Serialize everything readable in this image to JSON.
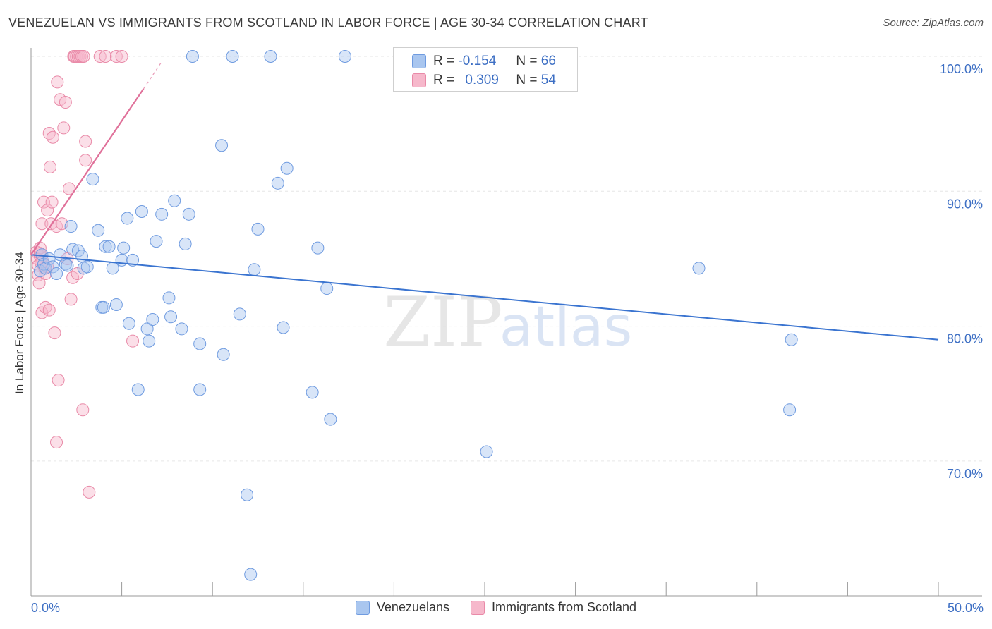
{
  "title": "VENEZUELAN VS IMMIGRANTS FROM SCOTLAND IN LABOR FORCE | AGE 30-34 CORRELATION CHART",
  "source": "Source: ZipAtlas.com",
  "watermark": {
    "zip": "ZIP",
    "atlas": "atlas"
  },
  "legend": {
    "r_label": "R =",
    "n_label": "N =",
    "rows": [
      {
        "r": "-0.154",
        "n": "66"
      },
      {
        "r": "0.309",
        "n": "54"
      }
    ]
  },
  "colors": {
    "blue_fill": "#a9c6ef",
    "blue_stroke": "#6f9be0",
    "blue_line": "#3a74d0",
    "pink_fill": "#f6b8cb",
    "pink_stroke": "#e98aa8",
    "pink_line": "#e0719a",
    "axis_text": "#3d6fc4",
    "grid": "#e6e6e6"
  },
  "chart_data": {
    "type": "scatter",
    "title": "VENEZUELAN VS IMMIGRANTS FROM SCOTLAND IN LABOR FORCE | AGE 30-34 CORRELATION CHART",
    "xlabel": "",
    "ylabel": "In Labor Force | Age 30-34",
    "xlim": [
      0,
      50
    ],
    "ylim": [
      61,
      101
    ],
    "x_tick_labels": {
      "left": "0.0%",
      "right": "50.0%"
    },
    "y_ticks": [
      {
        "value": 100,
        "label": "100.0%"
      },
      {
        "value": 90,
        "label": "90.0%"
      },
      {
        "value": 80,
        "label": "80.0%"
      },
      {
        "value": 70,
        "label": "70.0%"
      }
    ],
    "series": [
      {
        "name": "Venezuelans",
        "r": -0.154,
        "n": 66,
        "trend": {
          "x0": 0.0,
          "y0": 85.3,
          "x1": 50.0,
          "y1": 79.0
        },
        "points": [
          [
            0.5,
            84.1
          ],
          [
            0.6,
            85.3
          ],
          [
            0.7,
            84.6
          ],
          [
            0.8,
            84.3
          ],
          [
            1.0,
            85.0
          ],
          [
            1.2,
            84.4
          ],
          [
            1.4,
            83.9
          ],
          [
            1.6,
            85.3
          ],
          [
            1.9,
            84.6
          ],
          [
            2.0,
            84.5
          ],
          [
            2.2,
            87.4
          ],
          [
            2.3,
            85.7
          ],
          [
            2.6,
            85.6
          ],
          [
            2.8,
            85.2
          ],
          [
            2.9,
            84.3
          ],
          [
            3.1,
            84.4
          ],
          [
            3.4,
            90.9
          ],
          [
            3.7,
            87.1
          ],
          [
            3.9,
            81.4
          ],
          [
            4.1,
            85.9
          ],
          [
            4.3,
            85.9
          ],
          [
            4.5,
            84.3
          ],
          [
            4.7,
            81.6
          ],
          [
            5.0,
            84.9
          ],
          [
            5.1,
            85.8
          ],
          [
            5.3,
            88.0
          ],
          [
            5.4,
            80.2
          ],
          [
            5.6,
            84.9
          ],
          [
            5.9,
            75.3
          ],
          [
            6.1,
            88.5
          ],
          [
            6.4,
            79.8
          ],
          [
            6.5,
            78.9
          ],
          [
            6.7,
            80.5
          ],
          [
            6.9,
            86.3
          ],
          [
            7.2,
            88.3
          ],
          [
            7.6,
            82.1
          ],
          [
            7.7,
            80.7
          ],
          [
            7.9,
            89.3
          ],
          [
            8.3,
            79.8
          ],
          [
            8.5,
            86.1
          ],
          [
            8.7,
            88.3
          ],
          [
            8.9,
            100.0
          ],
          [
            9.3,
            78.7
          ],
          [
            9.3,
            75.3
          ],
          [
            10.5,
            93.4
          ],
          [
            10.6,
            77.9
          ],
          [
            11.1,
            100.0
          ],
          [
            11.5,
            80.9
          ],
          [
            11.9,
            67.5
          ],
          [
            12.1,
            61.6
          ],
          [
            12.3,
            84.2
          ],
          [
            12.5,
            87.2
          ],
          [
            13.2,
            100.0
          ],
          [
            13.6,
            90.6
          ],
          [
            13.9,
            79.9
          ],
          [
            14.1,
            91.7
          ],
          [
            15.5,
            75.1
          ],
          [
            15.8,
            85.8
          ],
          [
            16.3,
            82.8
          ],
          [
            16.5,
            73.1
          ],
          [
            17.3,
            100.0
          ],
          [
            25.1,
            70.7
          ],
          [
            36.8,
            84.3
          ],
          [
            41.8,
            73.8
          ],
          [
            41.9,
            79.0
          ],
          [
            4.0,
            81.4
          ]
        ]
      },
      {
        "name": "Immigrants from Scotland",
        "r": 0.309,
        "n": 54,
        "trend": {
          "x0": 0.0,
          "y0": 85.3,
          "x1": 6.2,
          "y1": 97.6,
          "dash_to_x": 7.2,
          "dash_to_y": 99.6
        },
        "points": [
          [
            0.3,
            85.5
          ],
          [
            0.35,
            85.0
          ],
          [
            0.4,
            84.5
          ],
          [
            0.4,
            83.8
          ],
          [
            0.45,
            83.2
          ],
          [
            0.5,
            85.2
          ],
          [
            0.5,
            85.8
          ],
          [
            0.55,
            84.7
          ],
          [
            0.6,
            87.6
          ],
          [
            0.6,
            81.0
          ],
          [
            0.7,
            89.2
          ],
          [
            0.75,
            84.3
          ],
          [
            0.8,
            83.9
          ],
          [
            0.8,
            81.4
          ],
          [
            0.9,
            84.4
          ],
          [
            0.9,
            88.6
          ],
          [
            1.0,
            94.3
          ],
          [
            1.0,
            81.2
          ],
          [
            1.05,
            91.8
          ],
          [
            1.1,
            87.6
          ],
          [
            1.15,
            89.2
          ],
          [
            1.2,
            94.0
          ],
          [
            1.3,
            79.5
          ],
          [
            1.4,
            87.4
          ],
          [
            1.45,
            98.1
          ],
          [
            1.5,
            76.0
          ],
          [
            1.6,
            96.8
          ],
          [
            1.7,
            87.6
          ],
          [
            1.8,
            94.7
          ],
          [
            1.9,
            96.6
          ],
          [
            2.0,
            85.0
          ],
          [
            2.1,
            90.2
          ],
          [
            2.2,
            82.0
          ],
          [
            2.3,
            83.6
          ],
          [
            2.35,
            100.0
          ],
          [
            2.4,
            100.0
          ],
          [
            2.5,
            100.0
          ],
          [
            2.55,
            83.9
          ],
          [
            2.6,
            100.0
          ],
          [
            2.7,
            100.0
          ],
          [
            2.8,
            100.0
          ],
          [
            2.9,
            100.0
          ],
          [
            3.0,
            93.7
          ],
          [
            2.85,
            73.8
          ],
          [
            3.0,
            92.3
          ],
          [
            3.2,
            67.7
          ],
          [
            3.8,
            100.0
          ],
          [
            4.1,
            100.0
          ],
          [
            4.7,
            100.0
          ],
          [
            5.0,
            100.0
          ],
          [
            1.4,
            71.4
          ],
          [
            5.6,
            78.9
          ],
          [
            0.5,
            85.4
          ],
          [
            0.65,
            84.8
          ]
        ]
      }
    ]
  }
}
